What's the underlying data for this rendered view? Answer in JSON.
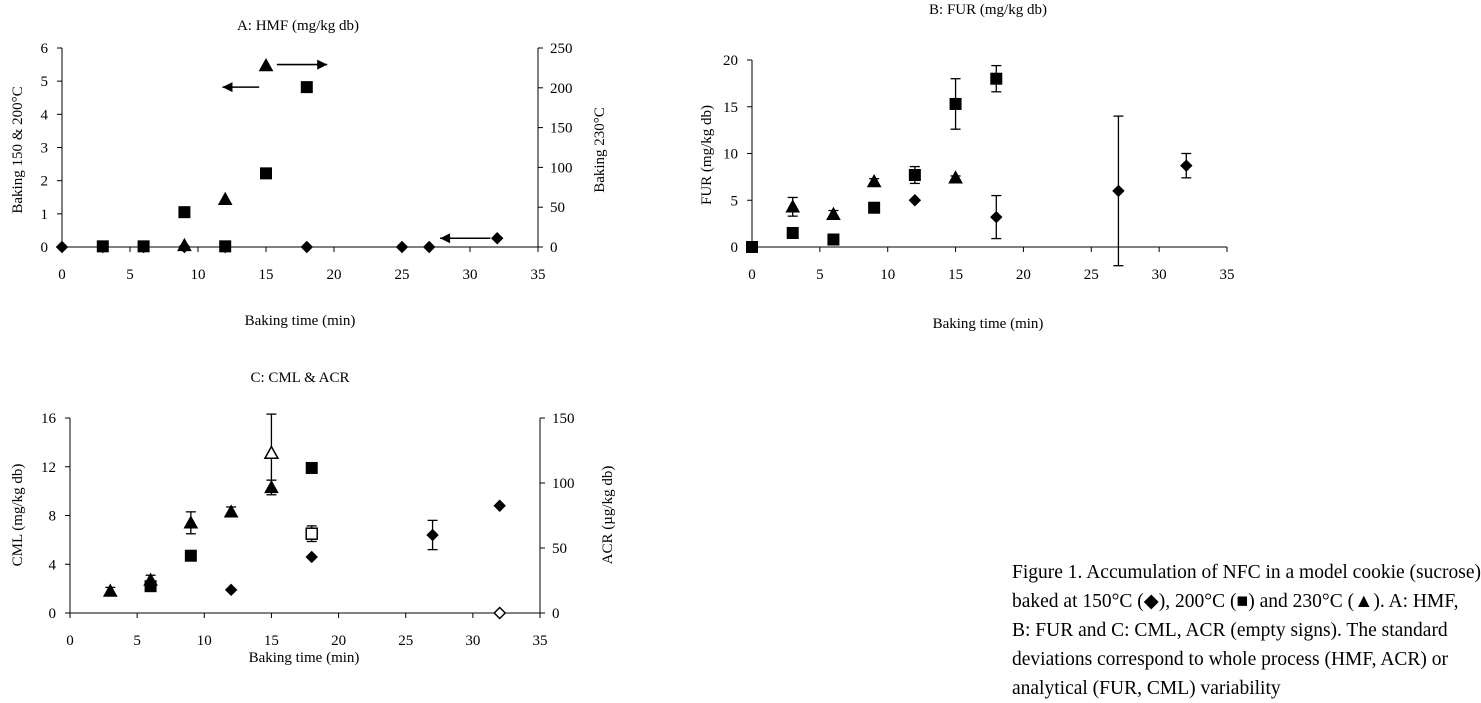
{
  "chart_data": [
    {
      "id": "A",
      "type": "scatter",
      "title": "A: HMF (mg/kg db)",
      "xlabel": "Baking time (min)",
      "ylabel_left": "Baking 150 & 200°C",
      "ylabel_right": "Baking 230°C",
      "xlim": [
        0,
        35
      ],
      "ylim_left": [
        0,
        6
      ],
      "ylim_right": [
        0,
        250
      ],
      "xticks": [
        "0",
        "5",
        "10",
        "15",
        "20",
        "25",
        "30",
        "35"
      ],
      "yticks_left": [
        "0",
        "1",
        "2",
        "3",
        "4",
        "5",
        "6"
      ],
      "yticks_right": [
        "0",
        "50",
        "100",
        "150",
        "200",
        "250"
      ],
      "series": [
        {
          "marker": "diamond",
          "axis": "left",
          "points": [
            [
              0,
              0
            ],
            [
              3,
              0
            ],
            [
              6,
              0
            ],
            [
              9,
              0
            ],
            [
              12,
              0
            ],
            [
              18,
              0
            ],
            [
              25,
              0
            ],
            [
              27,
              0
            ]
          ]
        },
        {
          "marker": "diamond",
          "axis": "right",
          "points": [
            [
              32,
              11
            ]
          ]
        },
        {
          "marker": "square",
          "axis": "left",
          "points": [
            [
              3,
              0.02
            ],
            [
              6,
              0.02
            ],
            [
              9,
              1.05
            ],
            [
              12,
              0.02
            ],
            [
              15,
              2.22
            ],
            [
              18,
              4.82
            ]
          ]
        },
        {
          "marker": "triangle",
          "axis": "right",
          "points": [
            [
              9,
              2
            ],
            [
              12,
              60
            ],
            [
              15,
              228
            ]
          ]
        }
      ],
      "arrows": [
        {
          "from": [
            15.8,
            5.5
          ],
          "to": [
            19.5,
            5.5
          ],
          "axis": "left"
        },
        {
          "from": [
            14.5,
            4.82
          ],
          "to": [
            11.8,
            4.82
          ],
          "axis": "left"
        },
        {
          "from": [
            31.5,
            11
          ],
          "to": [
            27.8,
            11
          ],
          "axis": "right"
        }
      ]
    },
    {
      "id": "B",
      "type": "scatter",
      "title": "B: FUR (mg/kg db)",
      "xlabel": "Baking time (min)",
      "ylabel": "FUR (mg/kg db)",
      "xlim": [
        0,
        35
      ],
      "ylim": [
        0,
        20
      ],
      "xticks": [
        "0",
        "5",
        "10",
        "15",
        "20",
        "25",
        "30",
        "35"
      ],
      "yticks": [
        "0",
        "5",
        "10",
        "15",
        "20"
      ],
      "series": [
        {
          "marker": "diamond",
          "points": [
            [
              0,
              0
            ],
            [
              12,
              5
            ],
            [
              18,
              3.2
            ],
            [
              27,
              6
            ],
            [
              32,
              8.7
            ]
          ],
          "errors": [
            0,
            0,
            2.3,
            8,
            1.3
          ]
        },
        {
          "marker": "square",
          "points": [
            [
              0,
              0
            ],
            [
              3,
              1.5
            ],
            [
              6,
              0.8
            ],
            [
              9,
              4.2
            ],
            [
              12,
              7.7
            ],
            [
              15,
              15.3
            ],
            [
              18,
              18
            ]
          ],
          "errors": [
            0,
            0,
            0,
            0,
            0.9,
            2.7,
            1.4
          ]
        },
        {
          "marker": "triangle",
          "points": [
            [
              3,
              4.3
            ],
            [
              6,
              3.5
            ],
            [
              9,
              7
            ],
            [
              15,
              7.4
            ]
          ],
          "errors": [
            1,
            0.4,
            0.3,
            0.2
          ]
        }
      ]
    },
    {
      "id": "C",
      "type": "scatter",
      "title": "C: CML & ACR",
      "xlabel": "Baking time (min)",
      "ylabel_left": "CML (mg/kg db)",
      "ylabel_right": "ACR (µg/kg db)",
      "xlim": [
        0,
        35
      ],
      "ylim_left": [
        0,
        16
      ],
      "ylim_right": [
        0,
        150
      ],
      "xticks": [
        "0",
        "5",
        "10",
        "15",
        "20",
        "25",
        "30",
        "35"
      ],
      "yticks_left": [
        "0",
        "4",
        "8",
        "12",
        "16"
      ],
      "yticks_right": [
        "0",
        "50",
        "100",
        "150"
      ],
      "series": [
        {
          "marker": "diamond",
          "axis": "left",
          "points": [
            [
              12,
              1.9
            ],
            [
              18,
              4.6
            ],
            [
              27,
              6.4
            ],
            [
              32,
              8.8
            ]
          ],
          "errors": [
            0,
            0,
            1.2,
            0
          ]
        },
        {
          "marker": "square",
          "axis": "left",
          "points": [
            [
              6,
              2.2
            ],
            [
              9,
              4.7
            ],
            [
              18,
              11.9
            ]
          ]
        },
        {
          "marker": "triangle",
          "axis": "left",
          "points": [
            [
              3,
              1.8
            ],
            [
              6,
              2.7
            ],
            [
              9,
              7.4
            ],
            [
              12,
              8.3
            ],
            [
              15,
              10.3
            ]
          ],
          "errors": [
            0.3,
            0.4,
            0.9,
            0.4,
            0.6
          ]
        },
        {
          "marker": "diamond-open",
          "axis": "right",
          "points": [
            [
              32,
              0
            ]
          ]
        },
        {
          "marker": "square-open",
          "axis": "right",
          "points": [
            [
              18,
              61
            ]
          ],
          "errors": [
            6
          ]
        },
        {
          "marker": "triangle-open",
          "axis": "right",
          "points": [
            [
              15,
              123
            ]
          ],
          "errors": [
            30
          ]
        }
      ]
    }
  ],
  "caption": {
    "lines": [
      "Figure 1. Accumulation of NFC in a model cookie (sucrose)",
      "baked at 150°C (◆), 200°C (■) and 230°C (▲). A: HMF,",
      "B: FUR and C: CML, ACR (empty signs). The standard",
      "deviations correspond to whole process (HMF, ACR) or",
      "analytical (FUR, CML) variability"
    ]
  }
}
